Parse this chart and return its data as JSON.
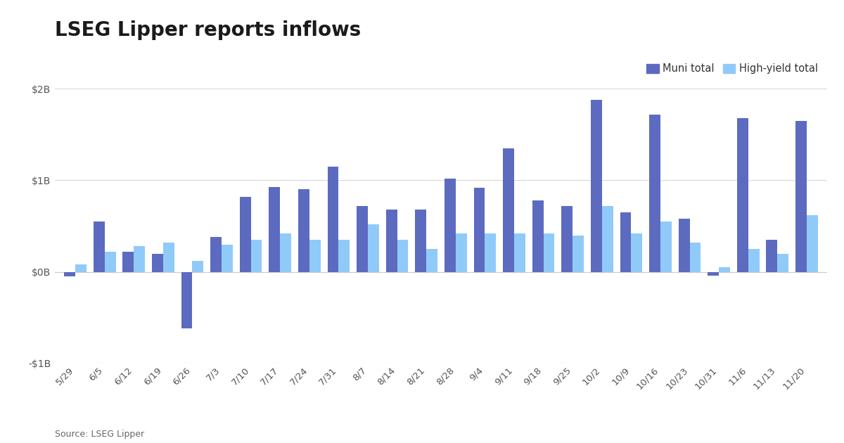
{
  "title": "LSEG Lipper reports inflows",
  "source": "Source: LSEG Lipper",
  "legend_labels": [
    "Muni total",
    "High-yield total"
  ],
  "muni_color": "#5C6BC0",
  "hy_color": "#90CAF9",
  "categories": [
    "5/29",
    "6/5",
    "6/12",
    "6/19",
    "6/26",
    "7/3",
    "7/10",
    "7/17",
    "7/24",
    "7/31",
    "8/7",
    "8/14",
    "8/21",
    "8/28",
    "9/4",
    "9/11",
    "9/18",
    "9/25",
    "10/2",
    "10/9",
    "10/16",
    "10/23",
    "10/31",
    "11/6",
    "11/13",
    "11/20"
  ],
  "muni_values": [
    -0.05,
    0.55,
    0.22,
    0.2,
    -0.62,
    0.38,
    0.82,
    0.93,
    0.9,
    1.15,
    0.72,
    0.68,
    0.68,
    1.02,
    0.92,
    1.35,
    0.78,
    0.72,
    1.88,
    0.65,
    1.72,
    0.58,
    -0.04,
    1.68,
    0.35,
    1.65
  ],
  "hy_values": [
    0.08,
    0.22,
    0.28,
    0.32,
    0.12,
    0.3,
    0.35,
    0.42,
    0.35,
    0.35,
    0.52,
    0.35,
    0.25,
    0.42,
    0.42,
    0.42,
    0.42,
    0.4,
    0.72,
    0.42,
    0.55,
    0.32,
    0.05,
    0.25,
    0.2,
    0.62
  ],
  "ylim": [
    -1.0,
    2.1
  ],
  "yticks": [
    -1.0,
    0.0,
    1.0,
    2.0
  ],
  "ytick_labels": [
    "-$1B",
    "$0B",
    "$1B",
    "$2B"
  ],
  "bar_width": 0.38,
  "background_color": "#ffffff",
  "grid_color": "#d8d8d8",
  "title_fontsize": 20,
  "axis_fontsize": 9.5,
  "legend_fontsize": 10.5,
  "source_fontsize": 9
}
